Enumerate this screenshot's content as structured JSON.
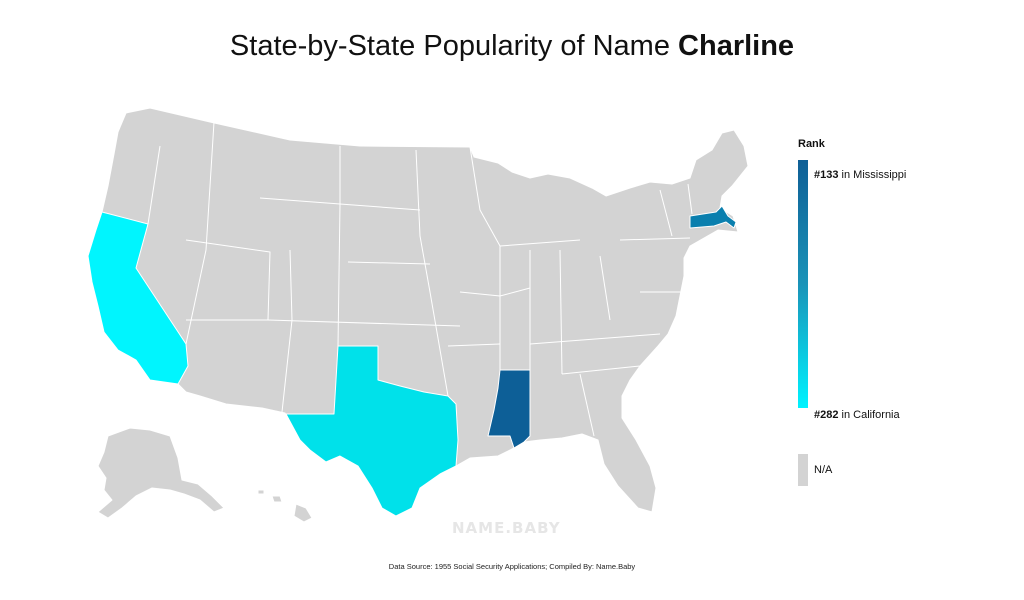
{
  "title": {
    "prefix": "State-by-State Popularity of Name ",
    "name": "Charline"
  },
  "legend": {
    "title": "Rank",
    "top": {
      "rank": "#133",
      "text": " in Mississippi"
    },
    "bottom": {
      "rank": "#282",
      "text": " in California"
    },
    "na": "N/A"
  },
  "watermark": "NAME.BABY",
  "source": "Data Source: 1955 Social Security Applications; Compiled By: Name.Baby",
  "colors": {
    "na": "#d3d3d3",
    "border": "#ffffff",
    "Mississippi": "#0d5f97",
    "Massachusetts": "#0a7fae",
    "Texas": "#00e1ea",
    "California": "#00f5fe"
  },
  "ranked_states": [
    {
      "state": "Mississippi",
      "rank": 133
    },
    {
      "state": "Massachusetts"
    },
    {
      "state": "Texas"
    },
    {
      "state": "California",
      "rank": 282
    }
  ]
}
